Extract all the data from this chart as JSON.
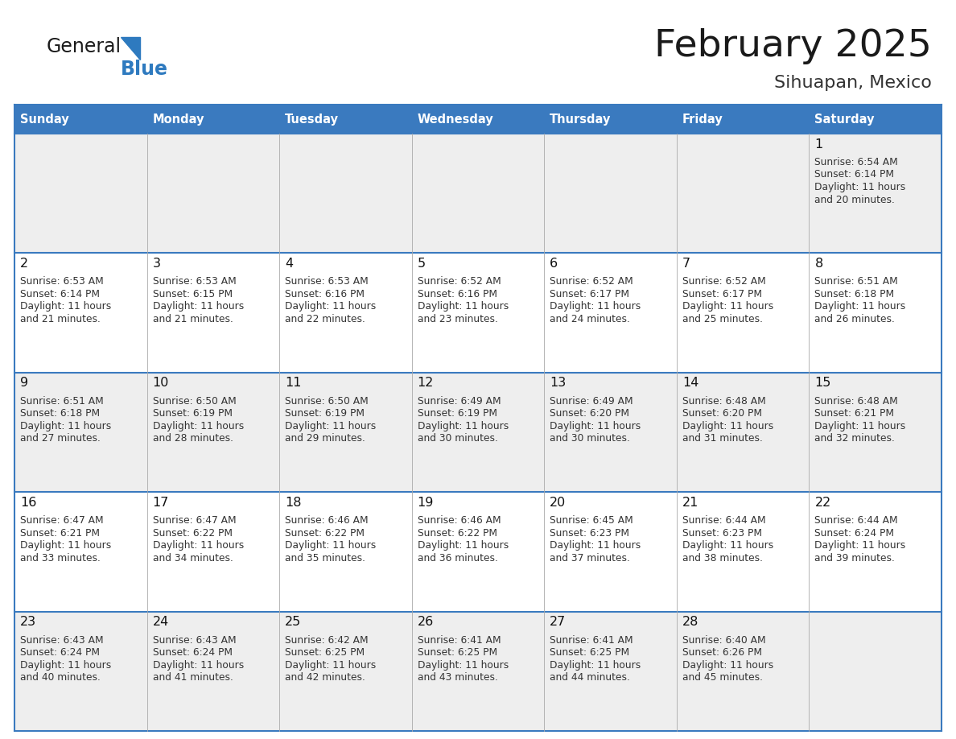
{
  "title": "February 2025",
  "subtitle": "Sihuapan, Mexico",
  "header_color": "#3a7abf",
  "header_text_color": "#ffffff",
  "cell_bg_row0": "#eeeeee",
  "cell_bg_row1": "#ffffff",
  "cell_bg_row2": "#eeeeee",
  "cell_bg_row3": "#ffffff",
  "cell_bg_row4": "#eeeeee",
  "border_color": "#3a7abf",
  "days_of_week": [
    "Sunday",
    "Monday",
    "Tuesday",
    "Wednesday",
    "Thursday",
    "Friday",
    "Saturday"
  ],
  "title_color": "#1a1a1a",
  "subtitle_color": "#333333",
  "cell_text_color": "#333333",
  "day_number_color": "#111111",
  "logo_general_color": "#1a1a1a",
  "logo_blue_color": "#2e7abf",
  "calendar_data": [
    [
      null,
      null,
      null,
      null,
      null,
      null,
      {
        "day": 1,
        "sunrise": "6:54 AM",
        "sunset": "6:14 PM",
        "daylight_l1": "Daylight: 11 hours",
        "daylight_l2": "and 20 minutes."
      }
    ],
    [
      {
        "day": 2,
        "sunrise": "6:53 AM",
        "sunset": "6:14 PM",
        "daylight_l1": "Daylight: 11 hours",
        "daylight_l2": "and 21 minutes."
      },
      {
        "day": 3,
        "sunrise": "6:53 AM",
        "sunset": "6:15 PM",
        "daylight_l1": "Daylight: 11 hours",
        "daylight_l2": "and 21 minutes."
      },
      {
        "day": 4,
        "sunrise": "6:53 AM",
        "sunset": "6:16 PM",
        "daylight_l1": "Daylight: 11 hours",
        "daylight_l2": "and 22 minutes."
      },
      {
        "day": 5,
        "sunrise": "6:52 AM",
        "sunset": "6:16 PM",
        "daylight_l1": "Daylight: 11 hours",
        "daylight_l2": "and 23 minutes."
      },
      {
        "day": 6,
        "sunrise": "6:52 AM",
        "sunset": "6:17 PM",
        "daylight_l1": "Daylight: 11 hours",
        "daylight_l2": "and 24 minutes."
      },
      {
        "day": 7,
        "sunrise": "6:52 AM",
        "sunset": "6:17 PM",
        "daylight_l1": "Daylight: 11 hours",
        "daylight_l2": "and 25 minutes."
      },
      {
        "day": 8,
        "sunrise": "6:51 AM",
        "sunset": "6:18 PM",
        "daylight_l1": "Daylight: 11 hours",
        "daylight_l2": "and 26 minutes."
      }
    ],
    [
      {
        "day": 9,
        "sunrise": "6:51 AM",
        "sunset": "6:18 PM",
        "daylight_l1": "Daylight: 11 hours",
        "daylight_l2": "and 27 minutes."
      },
      {
        "day": 10,
        "sunrise": "6:50 AM",
        "sunset": "6:19 PM",
        "daylight_l1": "Daylight: 11 hours",
        "daylight_l2": "and 28 minutes."
      },
      {
        "day": 11,
        "sunrise": "6:50 AM",
        "sunset": "6:19 PM",
        "daylight_l1": "Daylight: 11 hours",
        "daylight_l2": "and 29 minutes."
      },
      {
        "day": 12,
        "sunrise": "6:49 AM",
        "sunset": "6:19 PM",
        "daylight_l1": "Daylight: 11 hours",
        "daylight_l2": "and 30 minutes."
      },
      {
        "day": 13,
        "sunrise": "6:49 AM",
        "sunset": "6:20 PM",
        "daylight_l1": "Daylight: 11 hours",
        "daylight_l2": "and 30 minutes."
      },
      {
        "day": 14,
        "sunrise": "6:48 AM",
        "sunset": "6:20 PM",
        "daylight_l1": "Daylight: 11 hours",
        "daylight_l2": "and 31 minutes."
      },
      {
        "day": 15,
        "sunrise": "6:48 AM",
        "sunset": "6:21 PM",
        "daylight_l1": "Daylight: 11 hours",
        "daylight_l2": "and 32 minutes."
      }
    ],
    [
      {
        "day": 16,
        "sunrise": "6:47 AM",
        "sunset": "6:21 PM",
        "daylight_l1": "Daylight: 11 hours",
        "daylight_l2": "and 33 minutes."
      },
      {
        "day": 17,
        "sunrise": "6:47 AM",
        "sunset": "6:22 PM",
        "daylight_l1": "Daylight: 11 hours",
        "daylight_l2": "and 34 minutes."
      },
      {
        "day": 18,
        "sunrise": "6:46 AM",
        "sunset": "6:22 PM",
        "daylight_l1": "Daylight: 11 hours",
        "daylight_l2": "and 35 minutes."
      },
      {
        "day": 19,
        "sunrise": "6:46 AM",
        "sunset": "6:22 PM",
        "daylight_l1": "Daylight: 11 hours",
        "daylight_l2": "and 36 minutes."
      },
      {
        "day": 20,
        "sunrise": "6:45 AM",
        "sunset": "6:23 PM",
        "daylight_l1": "Daylight: 11 hours",
        "daylight_l2": "and 37 minutes."
      },
      {
        "day": 21,
        "sunrise": "6:44 AM",
        "sunset": "6:23 PM",
        "daylight_l1": "Daylight: 11 hours",
        "daylight_l2": "and 38 minutes."
      },
      {
        "day": 22,
        "sunrise": "6:44 AM",
        "sunset": "6:24 PM",
        "daylight_l1": "Daylight: 11 hours",
        "daylight_l2": "and 39 minutes."
      }
    ],
    [
      {
        "day": 23,
        "sunrise": "6:43 AM",
        "sunset": "6:24 PM",
        "daylight_l1": "Daylight: 11 hours",
        "daylight_l2": "and 40 minutes."
      },
      {
        "day": 24,
        "sunrise": "6:43 AM",
        "sunset": "6:24 PM",
        "daylight_l1": "Daylight: 11 hours",
        "daylight_l2": "and 41 minutes."
      },
      {
        "day": 25,
        "sunrise": "6:42 AM",
        "sunset": "6:25 PM",
        "daylight_l1": "Daylight: 11 hours",
        "daylight_l2": "and 42 minutes."
      },
      {
        "day": 26,
        "sunrise": "6:41 AM",
        "sunset": "6:25 PM",
        "daylight_l1": "Daylight: 11 hours",
        "daylight_l2": "and 43 minutes."
      },
      {
        "day": 27,
        "sunrise": "6:41 AM",
        "sunset": "6:25 PM",
        "daylight_l1": "Daylight: 11 hours",
        "daylight_l2": "and 44 minutes."
      },
      {
        "day": 28,
        "sunrise": "6:40 AM",
        "sunset": "6:26 PM",
        "daylight_l1": "Daylight: 11 hours",
        "daylight_l2": "and 45 minutes."
      },
      null
    ]
  ],
  "row_bg_colors": [
    "#eeeeee",
    "#ffffff",
    "#eeeeee",
    "#ffffff",
    "#eeeeee"
  ]
}
